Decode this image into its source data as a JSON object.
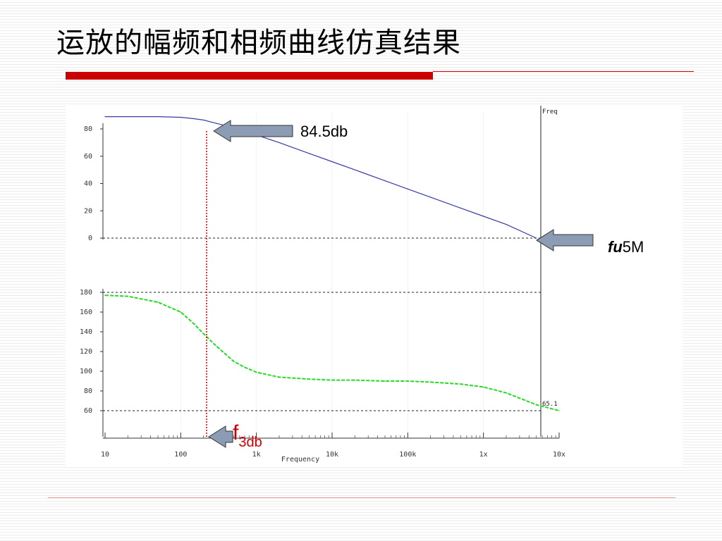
{
  "slide": {
    "title": "运放的幅频和相频曲线仿真结果"
  },
  "annotations": {
    "gain_label": "84.5db",
    "fu_italic": "fu",
    "fu_value": "5M",
    "f3db_main": "f",
    "f3db_sub": "3db"
  },
  "colors": {
    "title_bar": "#cc0000",
    "gain_curve": "#3a3aa8",
    "phase_curve": "#22dd22",
    "cursor_line": "#cc0000",
    "arrow_fill": "#8c9cb4"
  },
  "chart_data": [
    {
      "type": "line",
      "panel": "gain",
      "x_scale": "log",
      "xlim": [
        10,
        10000000
      ],
      "ylim": [
        0,
        90
      ],
      "y_ticks": [
        "80",
        "60",
        "40",
        "20",
        "0"
      ],
      "y_tick_values": [
        80,
        60,
        40,
        20,
        0
      ],
      "cursor_label": "Freq",
      "reference_lines": [
        0
      ],
      "series": [
        {
          "x": [
            10,
            50,
            100,
            150,
            200,
            300,
            500,
            1000,
            2000,
            5000,
            10000,
            20000,
            50000,
            100000,
            200000,
            500000,
            1000000,
            2000000,
            5000000
          ],
          "y": [
            89,
            89,
            88.5,
            87.5,
            86.5,
            84,
            81,
            75.5,
            70,
            62,
            56,
            50,
            42,
            36,
            30,
            22,
            16,
            10,
            0
          ]
        }
      ]
    },
    {
      "type": "line",
      "panel": "phase",
      "x_scale": "log",
      "xlim": [
        10,
        10000000
      ],
      "ylim": [
        55,
        185
      ],
      "y_ticks": [
        "180",
        "160",
        "140",
        "120",
        "100",
        "80",
        "60"
      ],
      "y_tick_values": [
        180,
        160,
        140,
        120,
        100,
        80,
        60
      ],
      "x_ticks": [
        "10",
        "100",
        "1k",
        "10k",
        "100k",
        "1x",
        "10x"
      ],
      "x_tick_values": [
        10,
        100,
        1000,
        10000,
        100000,
        1000000,
        10000000
      ],
      "xlabel": "Frequency",
      "reference_lines": [
        180,
        60
      ],
      "value_label": "65.1",
      "series": [
        {
          "x": [
            10,
            20,
            50,
            100,
            150,
            200,
            300,
            500,
            700,
            1000,
            2000,
            5000,
            10000,
            20000,
            50000,
            100000,
            200000,
            500000,
            1000000,
            2000000,
            5000000,
            10000000
          ],
          "y": [
            177,
            176,
            170,
            160,
            148,
            138,
            125,
            110,
            104,
            99,
            94,
            92,
            91,
            91,
            90,
            90,
            89,
            87,
            84,
            78,
            66,
            60
          ]
        }
      ]
    }
  ]
}
